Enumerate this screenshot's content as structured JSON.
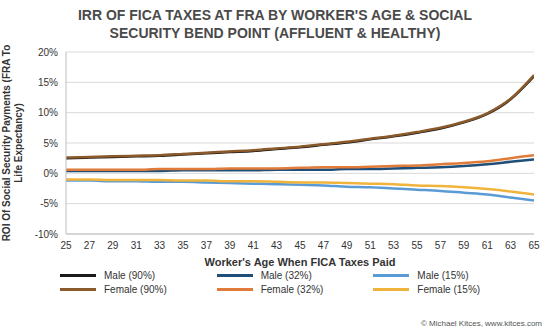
{
  "chart_data": {
    "type": "line",
    "title": "IRR OF FICA TAXES AT FRA BY WORKER'S AGE & SOCIAL SECURITY BEND POINT (AFFLUENT & HEALTHY)",
    "x_label": "Worker's Age When FICA Taxes Paid",
    "y_label": "ROI Of Social Security Payments (FRA To Life Expectancy)",
    "annotation": "© Michael Kitces, www.kitces.com",
    "x": [
      25,
      27,
      29,
      31,
      33,
      35,
      37,
      39,
      41,
      43,
      45,
      47,
      49,
      51,
      53,
      55,
      57,
      59,
      61,
      63,
      65
    ],
    "xlim": [
      25,
      65
    ],
    "xticks": [
      25,
      27,
      29,
      31,
      33,
      35,
      37,
      39,
      41,
      43,
      45,
      47,
      49,
      51,
      53,
      55,
      57,
      59,
      61,
      63,
      65
    ],
    "ylim": [
      -10,
      20
    ],
    "yticks": [
      {
        "value": -10,
        "label": "-10%"
      },
      {
        "value": -5,
        "label": "-5%"
      },
      {
        "value": 0,
        "label": "0%"
      },
      {
        "value": 5,
        "label": "5%"
      },
      {
        "value": 10,
        "label": "10%"
      },
      {
        "value": 15,
        "label": "15%"
      },
      {
        "value": 20,
        "label": "20%"
      }
    ],
    "grid": true,
    "legend": "bottom",
    "series": [
      {
        "name": "Male (90%)",
        "color": "#1a1a1a",
        "values": [
          2.5,
          2.6,
          2.7,
          2.8,
          2.9,
          3.1,
          3.3,
          3.5,
          3.7,
          4.0,
          4.3,
          4.7,
          5.1,
          5.6,
          6.1,
          6.7,
          7.4,
          8.4,
          9.8,
          12.2,
          16.0
        ]
      },
      {
        "name": "Male (32%)",
        "color": "#1f4e79",
        "values": [
          0.4,
          0.4,
          0.4,
          0.4,
          0.4,
          0.5,
          0.5,
          0.5,
          0.5,
          0.6,
          0.6,
          0.6,
          0.7,
          0.7,
          0.8,
          0.9,
          1.0,
          1.2,
          1.5,
          1.9,
          2.3
        ]
      },
      {
        "name": "Male (15%)",
        "color": "#5b9bd5",
        "values": [
          -1.2,
          -1.2,
          -1.3,
          -1.3,
          -1.4,
          -1.4,
          -1.5,
          -1.6,
          -1.7,
          -1.8,
          -1.9,
          -2.0,
          -2.2,
          -2.3,
          -2.5,
          -2.7,
          -2.9,
          -3.2,
          -3.5,
          -4.0,
          -4.5
        ]
      },
      {
        "name": "Female (90%)",
        "color": "#8b5a2b",
        "values": [
          2.6,
          2.7,
          2.8,
          2.9,
          3.0,
          3.2,
          3.4,
          3.6,
          3.8,
          4.1,
          4.4,
          4.8,
          5.2,
          5.7,
          6.2,
          6.8,
          7.5,
          8.5,
          9.9,
          12.3,
          16.2
        ]
      },
      {
        "name": "Female (32%)",
        "color": "#e07b39",
        "values": [
          0.6,
          0.6,
          0.6,
          0.6,
          0.7,
          0.7,
          0.7,
          0.8,
          0.8,
          0.8,
          0.9,
          1.0,
          1.0,
          1.1,
          1.2,
          1.3,
          1.5,
          1.7,
          2.0,
          2.5,
          3.0
        ]
      },
      {
        "name": "Female (15%)",
        "color": "#f0b43c",
        "values": [
          -1.0,
          -1.0,
          -1.1,
          -1.1,
          -1.1,
          -1.2,
          -1.2,
          -1.3,
          -1.3,
          -1.4,
          -1.5,
          -1.5,
          -1.6,
          -1.7,
          -1.8,
          -2.0,
          -2.1,
          -2.3,
          -2.6,
          -3.0,
          -3.5
        ]
      }
    ]
  }
}
